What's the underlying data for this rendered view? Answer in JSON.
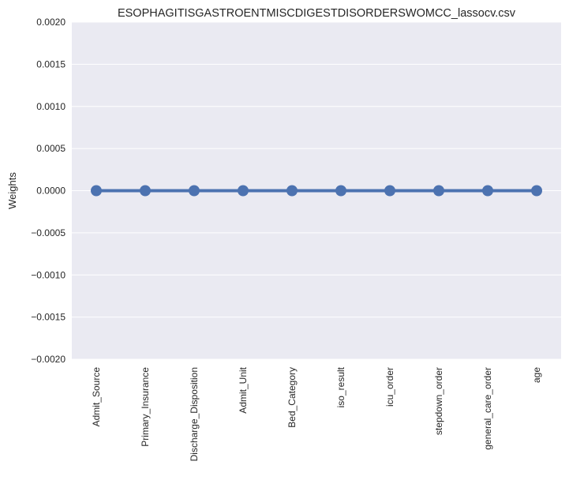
{
  "chart_data": {
    "type": "line",
    "title": "ESOPHAGITISGASTROENTMISCDIGESTDISORDERSWOMCC_lassocv.csv",
    "xlabel": "",
    "ylabel": "Weights",
    "categories": [
      "Admit_Source",
      "Primary_Insurance",
      "Discharge_Disposition",
      "Admit_Unit",
      "Bed_Category",
      "iso_result",
      "icu_order",
      "stepdown_order",
      "general_care_order",
      "age"
    ],
    "values": [
      0,
      0,
      0,
      0,
      0,
      0,
      0,
      0,
      0,
      0
    ],
    "ylim": [
      -0.002,
      0.002
    ],
    "yticks": [
      "0.0020",
      "0.0015",
      "0.0010",
      "0.0005",
      "0.0000",
      "−0.0005",
      "−0.0010",
      "−0.0015",
      "−0.0020"
    ],
    "ytick_values": [
      0.002,
      0.0015,
      0.001,
      0.0005,
      0,
      -0.0005,
      -0.001,
      -0.0015,
      -0.002
    ],
    "grid": true,
    "colors": {
      "background": "#eaeaf2",
      "grid": "#ffffff",
      "series": "#4c72b0"
    }
  }
}
